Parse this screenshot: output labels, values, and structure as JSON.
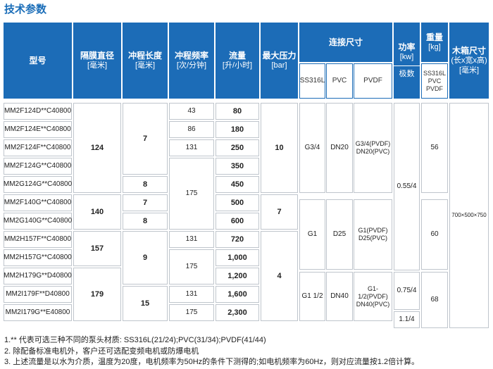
{
  "title": "技术参数",
  "headers": {
    "model": "型号",
    "diaphragm": [
      "隔膜直径",
      "[毫米]"
    ],
    "stroke": [
      "冲程长度",
      "[毫米]"
    ],
    "freq": [
      "冲程频率",
      "[次/分钟]"
    ],
    "flow": [
      "流量",
      "[升/小时]"
    ],
    "pressure": [
      "最大压力",
      "[bar]"
    ],
    "connection": "连接尺寸",
    "power": [
      "功率",
      "[kw]",
      "极数"
    ],
    "weight": [
      "重量",
      "[kg]"
    ],
    "box": [
      "木箱尺寸",
      "(长x宽x高)",
      "[毫米]"
    ]
  },
  "subheaders": {
    "conn_ss": "SS316L",
    "conn_pvc": "PVC",
    "conn_pvdf": "PVDF",
    "weight_materials": [
      "SS316L",
      "PVC",
      "PVDF"
    ]
  },
  "models": [
    "MM2F124D**C40800",
    "MM2F124E**C40800",
    "MM2F124F**C40800",
    "MM2F124G**C40800",
    "MM2G124G**C40800",
    "MM2F140G**C40800",
    "MM2G140G**C40800",
    "MM2H157F**C40800",
    "MM2H157G**C40800",
    "MM2H179G**D40800",
    "MM2I179F**D40800",
    "MM2I179G**E40800"
  ],
  "diaphragm_values": [
    "124",
    "140",
    "157",
    "179"
  ],
  "stroke_values": [
    "7",
    "8",
    "7",
    "8",
    "9",
    "15"
  ],
  "freq_values": [
    "43",
    "86",
    "131",
    "175",
    "131",
    "175",
    "131",
    "175"
  ],
  "flow_values": [
    "80",
    "180",
    "250",
    "350",
    "450",
    "500",
    "600",
    "720",
    "1,000",
    "1,200",
    "1,600",
    "2,300"
  ],
  "pressure_values": [
    "10",
    "7",
    "4"
  ],
  "conn_ss_values": [
    "G3/4",
    "G1",
    "G1 1/2"
  ],
  "conn_pvc_values": [
    "DN20",
    "D25",
    "DN40"
  ],
  "conn_pvdf_values": [
    [
      "G3/4(PVDF)",
      "DN20(PVC)"
    ],
    [
      "G1(PVDF)",
      "D25(PVC)"
    ],
    [
      "G1-1/2(PVDF)",
      "DN40(PVC)"
    ]
  ],
  "power_values": [
    "0.55/4",
    "0.75/4",
    "1.1/4"
  ],
  "weight_values": [
    "56",
    "60",
    "68"
  ],
  "box_value": "700×500×750",
  "notes": [
    "1.** 代表可选三种不同的泵头材质: SS316L(21/24);PVC(31/34);PVDF(41/44)",
    "2. 除配备标准电机外，客户还可选配变频电机或防爆电机",
    "3. 上述流量是以水为介质，温度为20度，电机频率为50Hz的条件下测得的;如电机频率为60Hz，则对应流量按1.2倍计算。"
  ]
}
